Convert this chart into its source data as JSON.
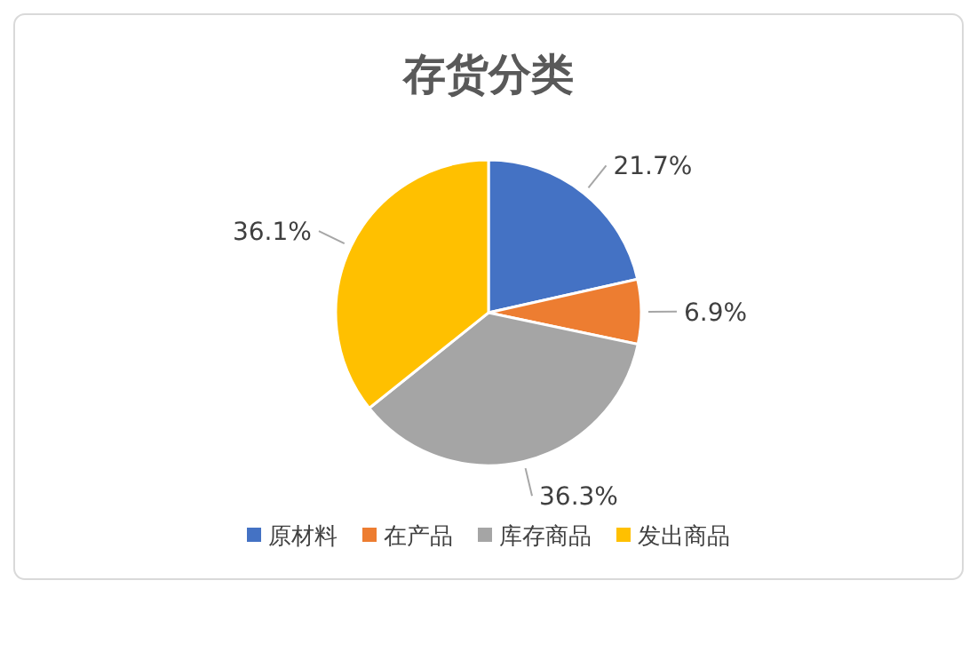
{
  "chart_data": {
    "type": "pie",
    "title": "存货分类",
    "categories": [
      "原材料",
      "在产品",
      "库存商品",
      "发出商品"
    ],
    "values": [
      21.7,
      6.9,
      36.3,
      36.1
    ],
    "value_labels": [
      "21.7%",
      "6.9%",
      "36.3%",
      "36.1%"
    ],
    "colors": [
      "#4472c4",
      "#ed7d31",
      "#a5a5a5",
      "#ffc000"
    ],
    "legend": "bottom"
  }
}
